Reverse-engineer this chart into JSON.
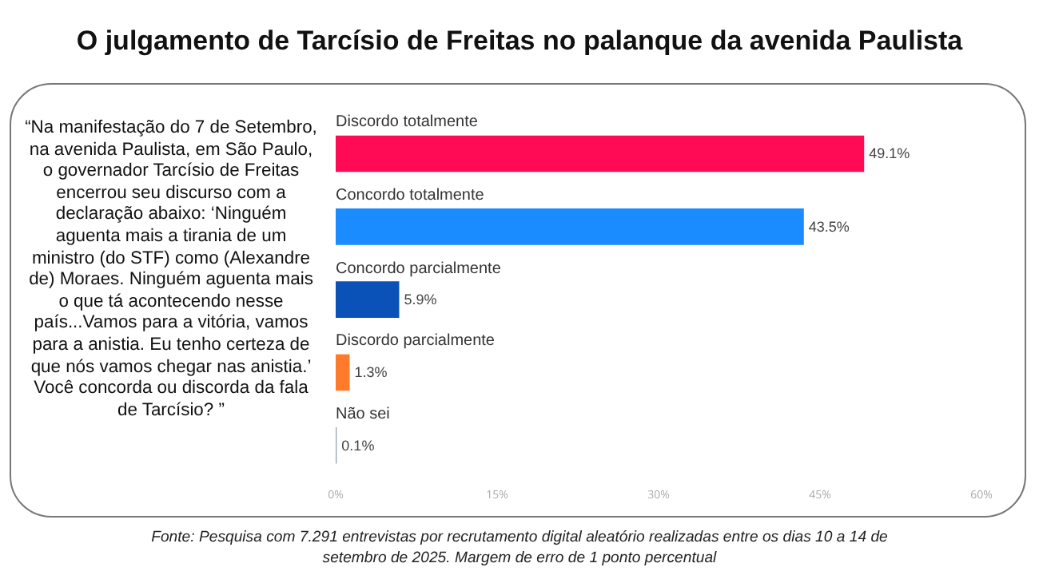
{
  "chart_data": {
    "type": "bar",
    "orientation": "horizontal",
    "title": "O julgamento de Tarcísio de Freitas no palanque da avenida Paulista",
    "categories": [
      "Discordo totalmente",
      "Concordo totalmente",
      "Concordo parcialmente",
      "Discordo parcialmente",
      "Não sei"
    ],
    "values": [
      49.1,
      43.5,
      5.9,
      1.3,
      0.1
    ],
    "colors": [
      "#ff0a55",
      "#1a8cff",
      "#0a52b8",
      "#ff7a2a",
      "#9aa3ad"
    ],
    "value_labels": [
      "49.1%",
      "43.5%",
      "5.9%",
      "1.3%",
      "0.1%"
    ],
    "xlim": [
      0,
      60
    ],
    "xticks": [
      {
        "value": 0,
        "label": "0%"
      },
      {
        "value": 15,
        "label": "15%"
      },
      {
        "value": 30,
        "label": "30%"
      },
      {
        "value": 45,
        "label": "45%"
      },
      {
        "value": 60,
        "label": "60%"
      }
    ],
    "annotations": [
      "“Na manifestação do 7 de Setembro, na avenida Paulista, em São Paulo, o governador Tarcísio de Freitas encerrou seu discurso com a declaração abaixo: ‘Ninguém aguenta mais a tirania de um ministro (do STF) como (Alexandre de) Moraes. Ninguém aguenta mais o que tá acontecendo nesse país...Vamos para a vitória, vamos para a anistia. Eu tenho certeza de que nós vamos chegar nas anistia.’ Você concorda ou discorda da fala de Tarcísio? ”",
      "Fonte: Pesquisa com 7.291 entrevistas por recrutamento digital aleatório realizadas entre os dias 10 a 14 de setembro de 2025. Margem de erro de 1 ponto percentual"
    ]
  }
}
